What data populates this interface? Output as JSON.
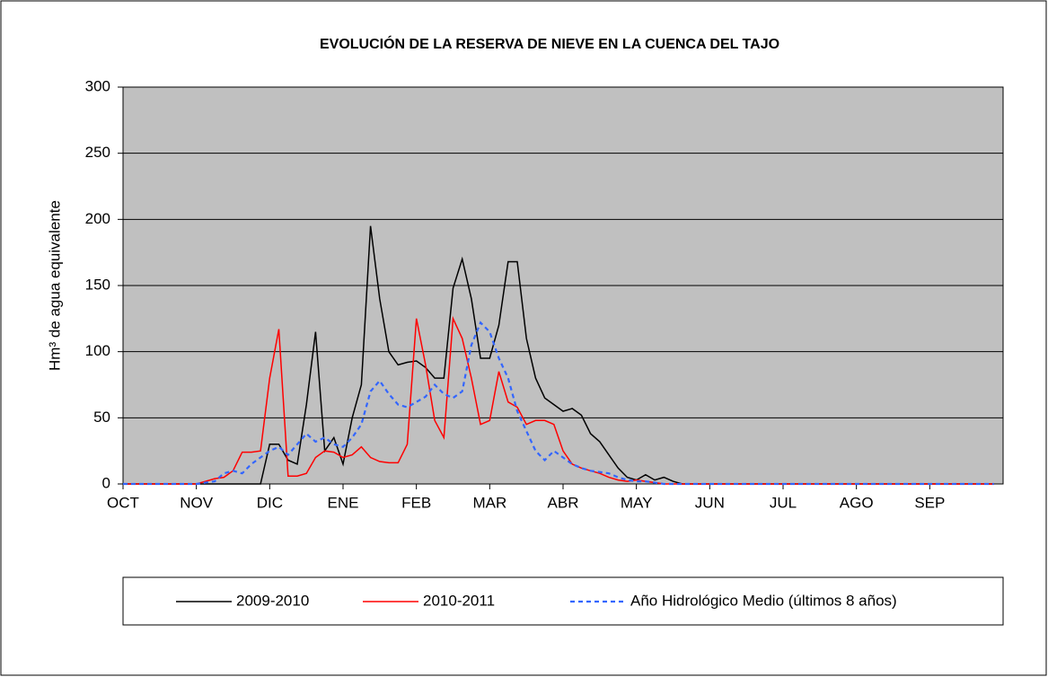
{
  "chart_data": {
    "type": "line",
    "title": "EVOLUCIÓN DE LA RESERVA DE NIEVE EN LA CUENCA DEL TAJO",
    "y_label": "Hm³ de agua equivalente",
    "categories": [
      "OCT",
      null,
      null,
      null,
      null,
      null,
      null,
      null,
      "NOV",
      null,
      null,
      null,
      null,
      null,
      null,
      null,
      "DIC",
      null,
      null,
      null,
      null,
      null,
      null,
      null,
      "ENE",
      null,
      null,
      null,
      null,
      null,
      null,
      null,
      "FEB",
      null,
      null,
      null,
      null,
      null,
      null,
      null,
      "MAR",
      null,
      null,
      null,
      null,
      null,
      null,
      null,
      "ABR",
      null,
      null,
      null,
      null,
      null,
      null,
      null,
      "MAY",
      null,
      null,
      null,
      null,
      null,
      null,
      null,
      "JUN",
      null,
      null,
      null,
      null,
      null,
      null,
      null,
      "JUL",
      null,
      null,
      null,
      null,
      null,
      null,
      null,
      "AGO",
      null,
      null,
      null,
      null,
      null,
      null,
      null,
      "SEP",
      null,
      null,
      null,
      null,
      null,
      null,
      null
    ],
    "series": [
      {
        "name": "2009-2010",
        "color": "#000000",
        "dashed": false,
        "values": [
          0,
          0,
          0,
          0,
          0,
          0,
          0,
          0,
          0,
          0,
          0,
          0,
          0,
          0,
          0,
          0,
          30,
          30,
          18,
          15,
          60,
          115,
          25,
          35,
          15,
          50,
          75,
          195,
          140,
          100,
          90,
          92,
          93,
          88,
          80,
          80,
          148,
          170,
          140,
          95,
          95,
          120,
          168,
          168,
          110,
          80,
          65,
          60,
          55,
          57,
          52,
          38,
          32,
          22,
          12,
          5,
          3,
          7,
          3,
          5,
          2,
          0,
          0,
          0,
          0,
          0,
          0,
          0,
          0,
          0,
          0,
          0,
          0,
          0,
          0,
          0,
          0,
          0,
          0,
          0,
          0,
          0,
          0,
          0,
          0,
          0,
          0,
          0,
          0,
          0,
          0,
          0,
          0,
          0,
          0,
          0
        ]
      },
      {
        "name": "2010-2011",
        "color": "#ff0000",
        "dashed": false,
        "values": [
          0,
          0,
          0,
          0,
          0,
          0,
          0,
          0,
          0,
          2,
          4,
          5,
          10,
          24,
          24,
          25,
          80,
          117,
          6,
          6,
          8,
          20,
          25,
          24,
          20,
          22,
          28,
          20,
          17,
          16,
          16,
          30,
          125,
          90,
          48,
          35,
          125,
          110,
          80,
          45,
          48,
          85,
          62,
          58,
          45,
          48,
          48,
          45,
          25,
          15,
          12,
          10,
          8,
          5,
          3,
          2,
          3,
          2,
          1,
          0,
          0,
          0,
          0,
          0,
          0,
          0,
          0,
          0,
          0,
          0,
          0,
          0,
          0,
          0,
          0,
          0,
          0,
          0,
          0,
          0,
          0,
          0,
          0,
          0,
          0,
          0,
          0,
          0,
          0,
          0,
          0,
          0,
          0,
          0,
          0,
          0
        ]
      },
      {
        "name": "Año Hidrológico Medio (últimos 8 años)",
        "color": "#3366ff",
        "dashed": true,
        "values": [
          0,
          0,
          0,
          0,
          0,
          0,
          0,
          0,
          0,
          1,
          2,
          8,
          10,
          8,
          15,
          20,
          25,
          28,
          22,
          30,
          38,
          32,
          35,
          30,
          28,
          35,
          45,
          70,
          78,
          68,
          60,
          58,
          62,
          66,
          75,
          68,
          65,
          70,
          105,
          122,
          115,
          95,
          80,
          55,
          40,
          25,
          18,
          25,
          20,
          15,
          12,
          10,
          9,
          8,
          5,
          3,
          2,
          2,
          1,
          0,
          0,
          0,
          0,
          0,
          0,
          0,
          0,
          0,
          0,
          0,
          0,
          0,
          0,
          0,
          0,
          0,
          0,
          0,
          0,
          0,
          0,
          0,
          0,
          0,
          0,
          0,
          0,
          0,
          0,
          0,
          0,
          0,
          0,
          0,
          0,
          0
        ]
      }
    ],
    "ylim": [
      0,
      300
    ],
    "yticks": [
      0,
      50,
      100,
      150,
      200,
      250,
      300
    ],
    "grid": true,
    "legend": "bottom",
    "plot_background": "#c0c0c0"
  }
}
